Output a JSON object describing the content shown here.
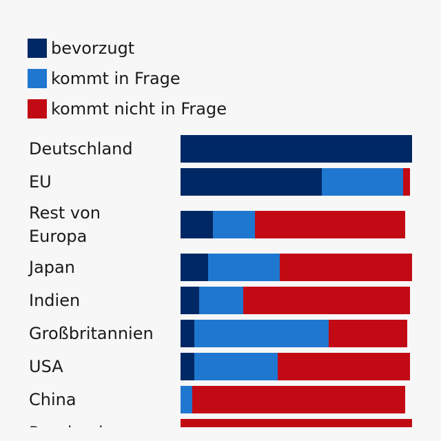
{
  "colors": {
    "bevorzugt": "#002864",
    "kommt_in_frage": "#1f77d0",
    "kommt_nicht_in_frage": "#c20a15"
  },
  "legend": [
    {
      "label": "bevorzugt",
      "color": "#002864"
    },
    {
      "label": "kommt in Frage",
      "color": "#1f77d0"
    },
    {
      "label": "kommt nicht in Frage",
      "color": "#c20a15"
    }
  ],
  "chart_data": {
    "type": "bar",
    "orientation": "horizontal",
    "stacked": true,
    "title": "",
    "xlabel": "",
    "ylabel": "",
    "legend_position": "top-left",
    "grid": false,
    "categories": [
      "Deutschland",
      "EU",
      "Rest von Europa",
      "Japan",
      "Indien",
      "Großbritannien",
      "USA",
      "China",
      "Russland"
    ],
    "series": [
      {
        "name": "bevorzugt",
        "color": "#002864",
        "values": [
          100,
          61,
          14,
          12,
          8,
          6,
          6,
          0,
          0
        ]
      },
      {
        "name": "kommt in Frage",
        "color": "#1f77d0",
        "values": [
          0,
          35,
          18,
          31,
          19,
          58,
          36,
          5,
          0
        ]
      },
      {
        "name": "kommt nicht in Frage",
        "color": "#c20a15",
        "values": [
          0,
          3,
          65,
          57,
          72,
          34,
          57,
          92,
          100
        ]
      }
    ]
  }
}
